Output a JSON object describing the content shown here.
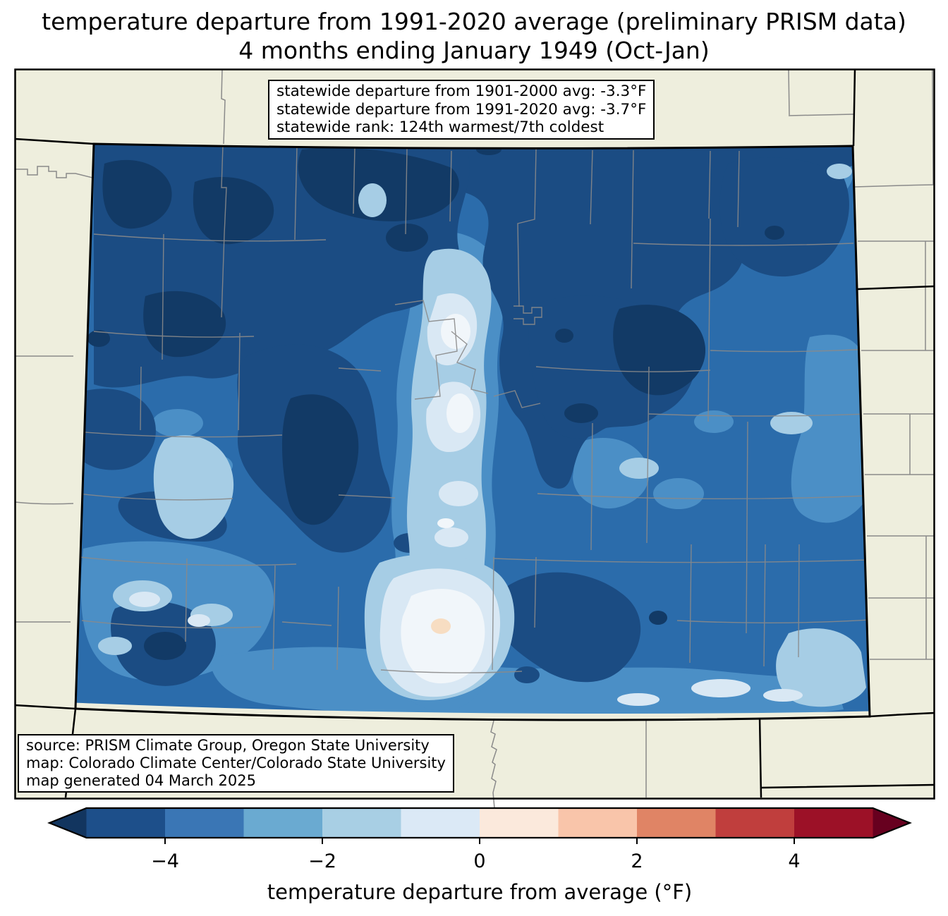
{
  "title": {
    "line1": "temperature departure from 1991-2020 average (preliminary PRISM data)",
    "line2": "4 months ending January 1949 (Oct-Jan)"
  },
  "stats_box": {
    "lines": [
      "statewide departure from 1901-2000 avg: -3.3°F",
      "statewide departure from 1991-2020 avg: -3.7°F",
      "statewide rank: 124th warmest/7th coldest"
    ]
  },
  "source_box": {
    "lines": [
      "source: PRISM Climate Group, Oregon State University",
      "map: Colorado Climate Center/Colorado State University",
      "map generated 04 March 2025"
    ]
  },
  "map": {
    "region": "Colorado",
    "statewide_departure_1901_2000_f": -3.3,
    "statewide_departure_1991_2020_f": -3.7,
    "statewide_rank": "124th warmest/7th coldest",
    "background_color": "#eeeedd",
    "state_border_color": "#000000",
    "county_line_color": "#8a8a8a",
    "contour_palette_cold_to_warm": [
      "#123a66",
      "#1b4c83",
      "#2b6cab",
      "#4b8fc6",
      "#a6cde5",
      "#d9e8f4",
      "#f1f6fa",
      "#f7ddc2"
    ]
  },
  "colorbar": {
    "axis_label": "temperature departure from average (°F)",
    "range": [
      -5,
      5
    ],
    "segment_colors": [
      "#1d4f8a",
      "#3a76b5",
      "#6aaad1",
      "#a8cfe4",
      "#dbe9f6",
      "#fbe9dc",
      "#f9c5aa",
      "#e08465",
      "#c03e3d",
      "#9c1127"
    ],
    "under_arrow_color": "#12355f",
    "over_arrow_color": "#67001f",
    "ticks": [
      {
        "value": -4,
        "label": "−4"
      },
      {
        "value": -2,
        "label": "−2"
      },
      {
        "value": 0,
        "label": "0"
      },
      {
        "value": 2,
        "label": "2"
      },
      {
        "value": 4,
        "label": "4"
      }
    ]
  }
}
